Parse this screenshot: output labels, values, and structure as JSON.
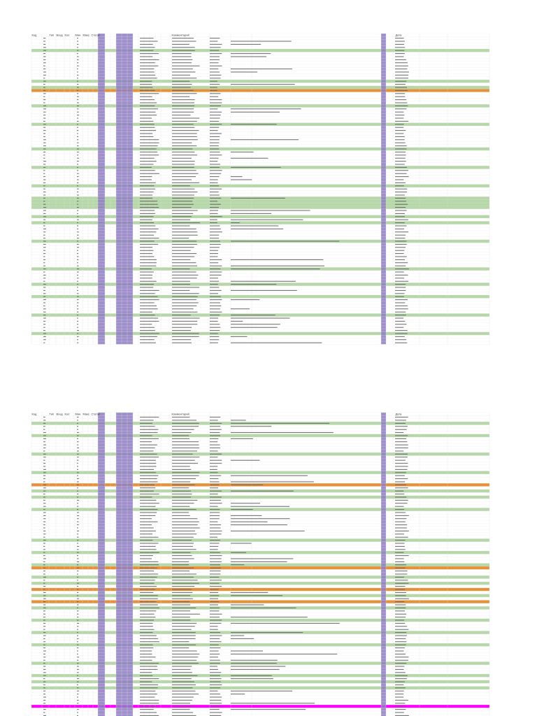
{
  "sheets": [
    {
      "headers": [
        "Код",
        "Тип",
        "Вход",
        "Кол",
        "Мин",
        "Макс",
        "Статус",
        "Комментарий",
        "Дата"
      ]
    },
    {
      "headers": [
        "Код",
        "Тип",
        "Вход",
        "Кол",
        "Мин",
        "Макс",
        "Статус",
        "Комментарий",
        "Дата"
      ]
    }
  ]
}
